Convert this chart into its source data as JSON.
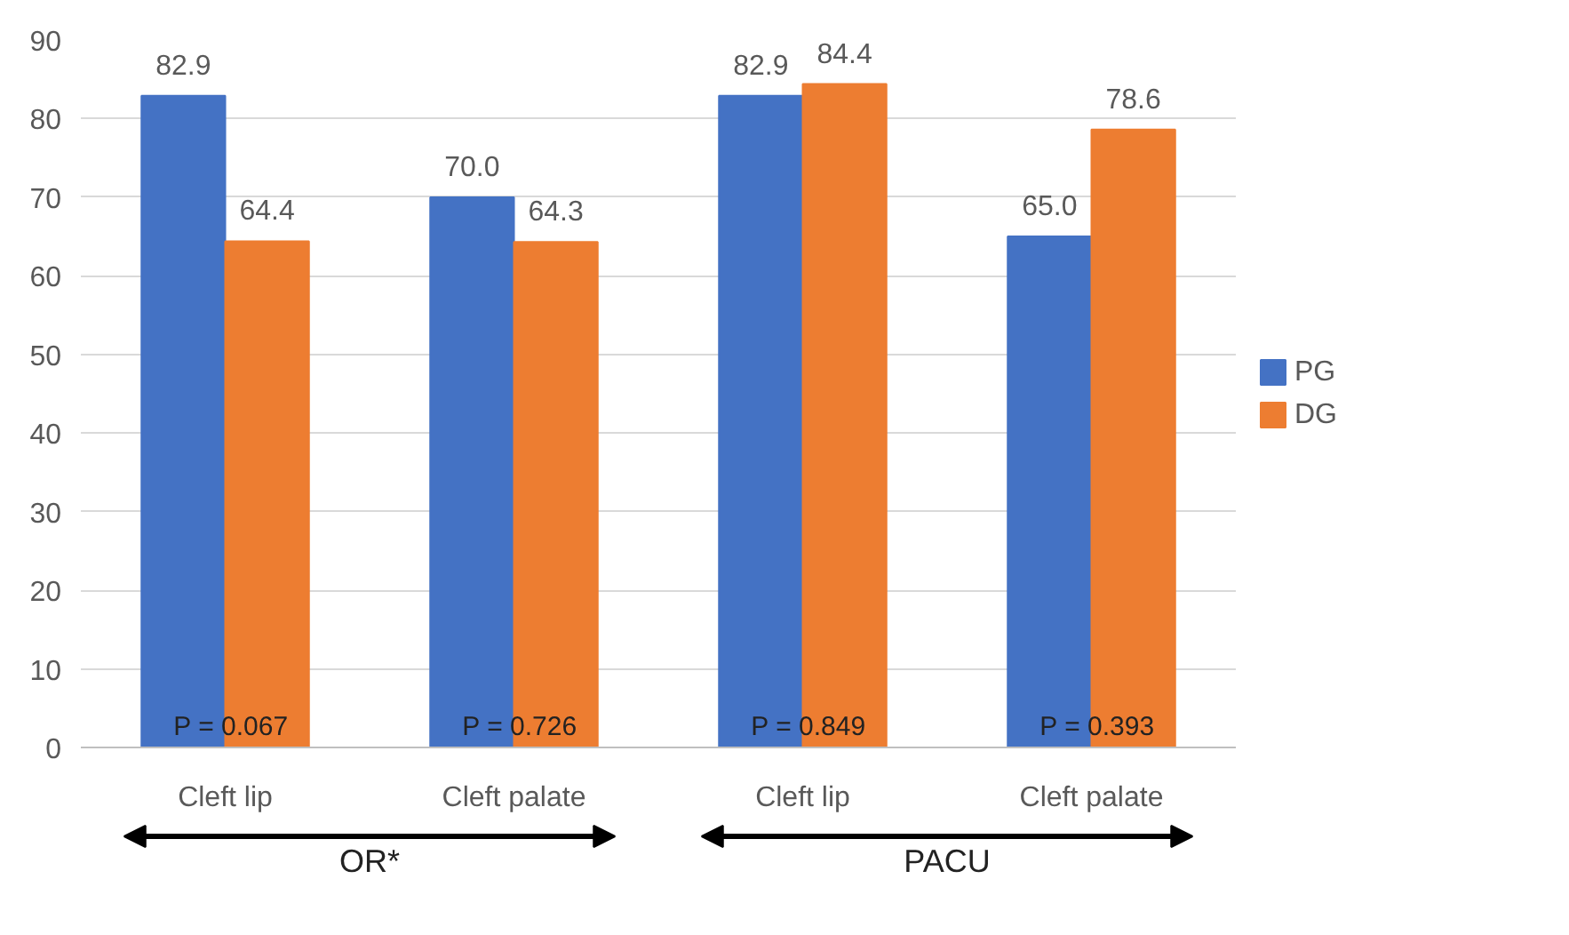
{
  "chart_data": {
    "type": "bar",
    "categories": [
      "Cleft lip",
      "Cleft palate",
      "Cleft lip",
      "Cleft palate"
    ],
    "series": [
      {
        "name": "PG",
        "color": "#4472c4",
        "values": [
          82.9,
          70.0,
          82.9,
          65.0
        ],
        "value_labels": [
          "82.9",
          "70.0",
          "82.9",
          "65.0"
        ]
      },
      {
        "name": "DG",
        "color": "#ed7d31",
        "values": [
          64.4,
          64.3,
          84.4,
          78.6
        ],
        "value_labels": [
          "64.4",
          "64.3",
          "84.4",
          "78.6"
        ]
      }
    ],
    "ylim": [
      0,
      90
    ],
    "yticks": [
      0,
      10,
      20,
      30,
      40,
      50,
      60,
      70,
      80,
      90
    ],
    "grid": "y",
    "legend": "right",
    "annotations": [
      "P = 0.067",
      "P = 0.726",
      "P = 0.849",
      "P = 0.393",
      "OR*",
      "PACU"
    ]
  }
}
